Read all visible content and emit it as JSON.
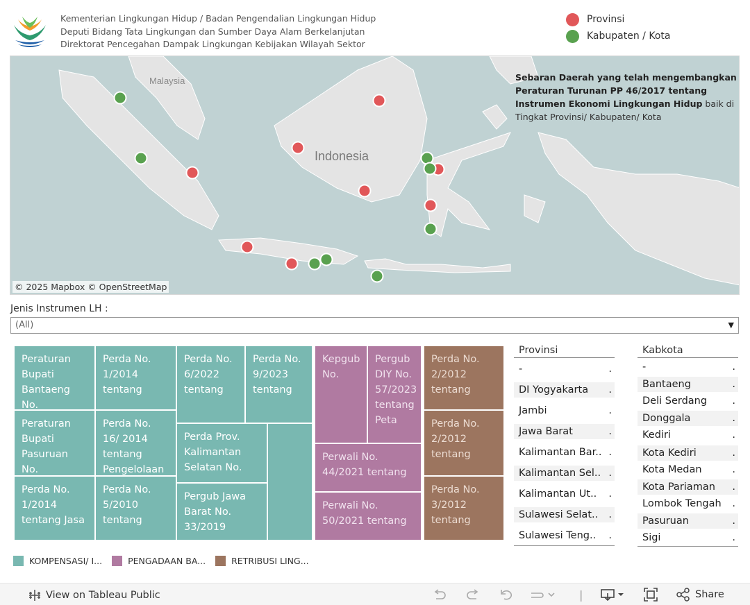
{
  "header": {
    "lines": [
      "Kementerian Lingkungan Hidup / Badan Pengendalian Lingkungan Hidup",
      "Deputi Bidang Tata Lingkungan dan Sumber Daya Alam Berkelanjutan",
      "Direktorat Pencegahan Dampak Lingkungan Kebijakan Wilayah Sektor"
    ]
  },
  "legend_top": [
    {
      "label": "Provinsi",
      "color": "#e15759"
    },
    {
      "label": "Kabupaten / Kota",
      "color": "#59a14f"
    }
  ],
  "map": {
    "labels": {
      "malaysia": "Malaysia",
      "indonesia": "Indonesia"
    },
    "description_bold": "Sebaran Daerah yang telah mengembangkan Peraturan Turunan PP 46/2017 tentang Instrumen Ekonomi Lingkungan Hidup",
    "description_rest": " baik di Tingkat Provinsi/ Kabupaten/ Kota",
    "attribution": "© 2025 Mapbox  © OpenStreetMap"
  },
  "filter": {
    "label": "Jenis Instrumen LH :",
    "value": "(All)"
  },
  "treemap": {
    "compensation": [
      "Peraturan Bupati Bantaeng No.",
      "Perda No. 1/2014 tentang",
      "Perda No. 6/2022 tentang",
      "Perda No. 9/2023 tentang",
      "Peraturan Bupati Pasuruan No.",
      "Perda No. 16/ 2014 tentang Pengelolaan",
      "Perda Prov. Kalimantan Selatan No.",
      "Perda No. 1/2014 tentang Jasa",
      "Perda No. 5/2010 tentang",
      "Pergub Jawa Barat No. 33/2019"
    ],
    "procurement": [
      "Kepgub No.",
      "Pergub DIY No. 57/2023 tentang Peta",
      "Perwali No. 44/2021 tentang",
      "Perwali No. 50/2021 tentang"
    ],
    "retribution": [
      "Perda No. 2/2012 tentang",
      "Perda No. 2/2012 tentang",
      "Perda No. 3/2012 tentang"
    ]
  },
  "provinsi": {
    "header": "Provinsi",
    "items": [
      "-",
      "DI Yogyakarta",
      "Jambi",
      "Jawa Barat",
      "Kalimantan Bar..",
      "Kalimantan Sel..",
      "Kalimantan Ut..",
      "Sulawesi Selat..",
      "Sulawesi Teng.."
    ]
  },
  "kabkota": {
    "header": "Kabkota",
    "items": [
      "-",
      "Bantaeng",
      "Deli Serdang",
      "Donggala",
      "Kediri",
      "Kota Kediri",
      "Kota Medan",
      "Kota Pariaman",
      "Lombok Tengah",
      "Pasuruan",
      "Sigi"
    ]
  },
  "tick_mark": ".",
  "category_legend": [
    {
      "label": "KOMPENSASI/ I...",
      "color": "#79b8b1"
    },
    {
      "label": "PENGADAAN BA...",
      "color": "#b07aa1"
    },
    {
      "label": "RETRIBUSI LING...",
      "color": "#9c755f"
    }
  ],
  "toolbar": {
    "view_label": "View on Tableau Public",
    "share_label": "Share"
  },
  "icons": [
    "tableau-logo-icon",
    "undo-icon",
    "redo-icon",
    "revert-icon",
    "refresh-icon",
    "download-icon",
    "fullscreen-icon",
    "share-icon"
  ]
}
